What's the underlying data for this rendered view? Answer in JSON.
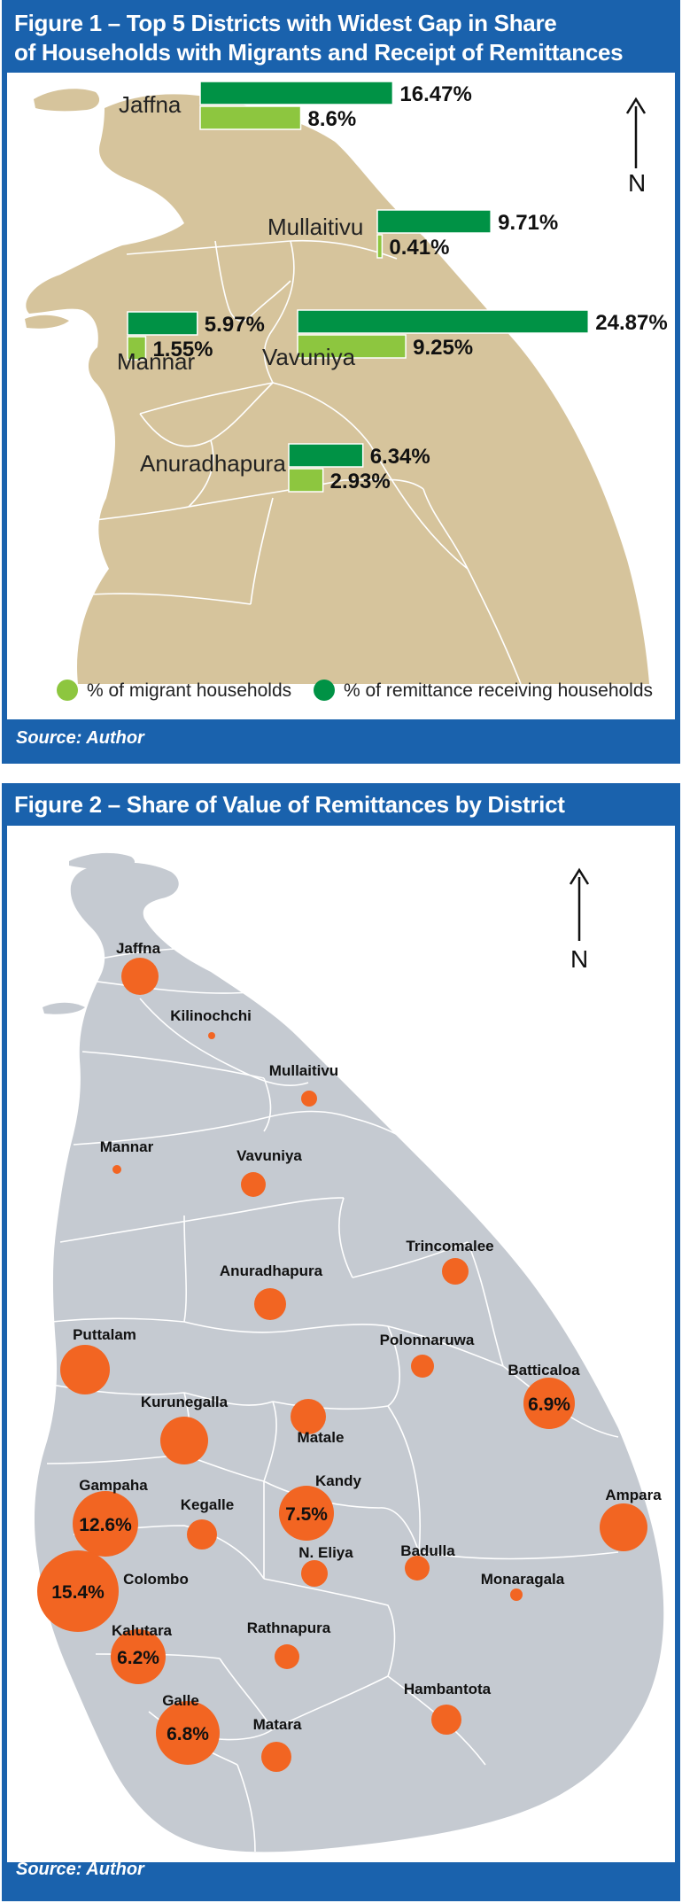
{
  "figure1": {
    "title_line1": "Figure 1 – Top 5 Districts with Widest Gap in Share",
    "title_line2": "of Households with Migrants and Receipt of Remittances",
    "north": "N",
    "legend": [
      {
        "label": "% of migrant households",
        "color": "#8dc63f"
      },
      {
        "label": "% of remittance receiving households",
        "color": "#009245"
      }
    ],
    "source": "Source: Author",
    "colors": {
      "land": "#d6c49c",
      "border": "#ffffff",
      "remit": "#009245",
      "migrant": "#8dc63f"
    },
    "districts": [
      {
        "name": "Jaffna",
        "remittance_pct": 16.47,
        "remittance_label": "16.47%",
        "migrant_pct": 8.6,
        "migrant_label": "8.6%"
      },
      {
        "name": "Mullaitivu",
        "remittance_pct": 9.71,
        "remittance_label": "9.71%",
        "migrant_pct": 0.41,
        "migrant_label": "0.41%"
      },
      {
        "name": "Mannar",
        "remittance_pct": 5.97,
        "remittance_label": "5.97%",
        "migrant_pct": 1.55,
        "migrant_label": "1.55%"
      },
      {
        "name": "Vavuniya",
        "remittance_pct": 24.87,
        "remittance_label": "24.87%",
        "migrant_pct": 9.25,
        "migrant_label": "9.25%"
      },
      {
        "name": "Anuradhapura",
        "remittance_pct": 6.34,
        "remittance_label": "6.34%",
        "migrant_pct": 2.93,
        "migrant_label": "2.93%"
      }
    ]
  },
  "figure2": {
    "title": "Figure 2 – Share of Value of Remittances by District",
    "north": "N",
    "source": "Source: Author",
    "colors": {
      "land": "#c5cad1",
      "border": "#ffffff",
      "bubble": "#f26522"
    },
    "districts": [
      {
        "name": "Jaffna",
        "value_label": ""
      },
      {
        "name": "Kilinochchi",
        "value_label": ""
      },
      {
        "name": "Mullaitivu",
        "value_label": ""
      },
      {
        "name": "Mannar",
        "value_label": ""
      },
      {
        "name": "Vavuniya",
        "value_label": ""
      },
      {
        "name": "Trincomalee",
        "value_label": ""
      },
      {
        "name": "Anuradhapura",
        "value_label": ""
      },
      {
        "name": "Puttalam",
        "value_label": ""
      },
      {
        "name": "Polonnaruwa",
        "value_label": ""
      },
      {
        "name": "Batticaloa",
        "value_label": "6.9%"
      },
      {
        "name": "Kurunegalla",
        "value_label": ""
      },
      {
        "name": "Matale",
        "value_label": ""
      },
      {
        "name": "Kandy",
        "value_label": "7.5%"
      },
      {
        "name": "Gampaha",
        "value_label": "12.6%"
      },
      {
        "name": "Kegalle",
        "value_label": ""
      },
      {
        "name": "Ampara",
        "value_label": ""
      },
      {
        "name": "N. Eliya",
        "value_label": ""
      },
      {
        "name": "Badulla",
        "value_label": ""
      },
      {
        "name": "Colombo",
        "value_label": "15.4%"
      },
      {
        "name": "Monaragala",
        "value_label": ""
      },
      {
        "name": "Kalutara",
        "value_label": "6.2%"
      },
      {
        "name": "Rathnapura",
        "value_label": ""
      },
      {
        "name": "Hambantota",
        "value_label": ""
      },
      {
        "name": "Galle",
        "value_label": "6.8%"
      },
      {
        "name": "Matara",
        "value_label": ""
      }
    ]
  }
}
